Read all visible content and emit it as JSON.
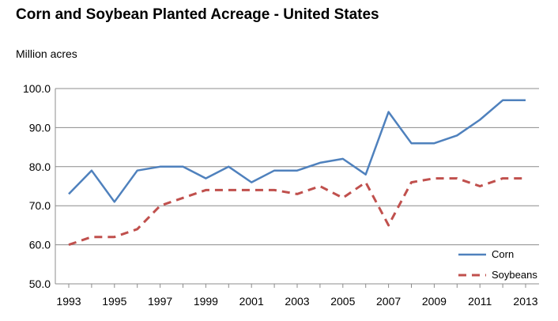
{
  "chart_data": {
    "type": "line",
    "title": "Corn and Soybean Planted Acreage - United States",
    "ylabel": "Million acres",
    "xlabel": "",
    "ylim": [
      50,
      100
    ],
    "yticks": [
      "50.0",
      "60.0",
      "70.0",
      "80.0",
      "90.0",
      "100.0"
    ],
    "x": [
      1993,
      1994,
      1995,
      1996,
      1997,
      1998,
      1999,
      2000,
      2001,
      2002,
      2003,
      2004,
      2005,
      2006,
      2007,
      2008,
      2009,
      2010,
      2011,
      2012,
      2013
    ],
    "xticks": [
      "1993",
      "1995",
      "1997",
      "1999",
      "2001",
      "2003",
      "2005",
      "2007",
      "2009",
      "2011",
      "2013"
    ],
    "grid": true,
    "legend_position": "bottom-right",
    "series": [
      {
        "name": "Corn",
        "color": "#4f81bd",
        "style": "solid",
        "values": [
          73,
          79,
          71,
          79,
          80,
          80,
          77,
          80,
          76,
          79,
          79,
          81,
          82,
          78,
          94,
          86,
          86,
          88,
          92,
          97,
          97
        ]
      },
      {
        "name": "Soybeans",
        "color": "#c0504d",
        "style": "dashed",
        "values": [
          60,
          62,
          62,
          64,
          70,
          72,
          74,
          74,
          74,
          74,
          73,
          75,
          72,
          76,
          65,
          76,
          77,
          77,
          75,
          77,
          77
        ]
      }
    ]
  }
}
